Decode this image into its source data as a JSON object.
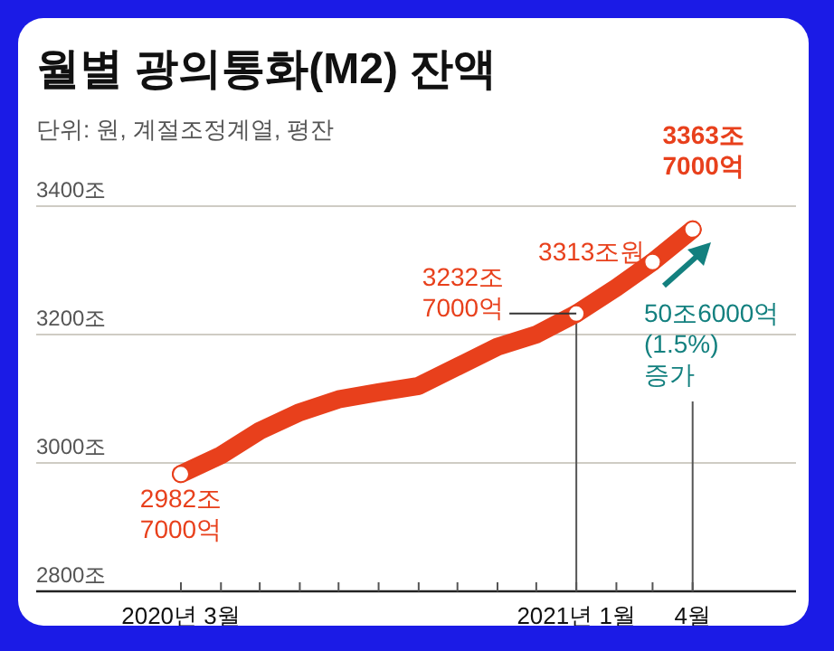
{
  "chart_data": {
    "type": "line",
    "title": "월별 광의통화(M2) 잔액",
    "subtitle": "단위: 원, 계절조정계열, 평잔",
    "x": [
      "2020-03",
      "2020-04",
      "2020-05",
      "2020-06",
      "2020-07",
      "2020-08",
      "2020-09",
      "2020-10",
      "2020-11",
      "2020-12",
      "2021-01",
      "2021-02",
      "2021-03",
      "2021-04"
    ],
    "series": [
      {
        "color": "#e8401c",
        "values": [
          2982.7,
          3012,
          3050,
          3079,
          3099,
          3110,
          3120,
          3150,
          3181,
          3200,
          3232.7,
          3273,
          3313,
          3363.7
        ]
      }
    ],
    "line_style": "solid",
    "grid": "y",
    "xlim": [
      "2019-11-10",
      "2021-06-20"
    ],
    "xticks": [
      {
        "value": "2020-03",
        "label": "2020년 3월"
      },
      {
        "value": "2020-04",
        "label": null
      },
      {
        "value": "2020-05",
        "label": null
      },
      {
        "value": "2020-06",
        "label": null
      },
      {
        "value": "2020-07",
        "label": null
      },
      {
        "value": "2020-08",
        "label": null
      },
      {
        "value": "2020-09",
        "label": null
      },
      {
        "value": "2020-10",
        "label": null
      },
      {
        "value": "2020-11",
        "label": null
      },
      {
        "value": "2020-12",
        "label": null
      },
      {
        "value": "2021-01",
        "label": "2021년 1월"
      },
      {
        "value": "2021-02",
        "label": null
      },
      {
        "value": "2021-03",
        "label": null
      },
      {
        "value": "2021-04",
        "label": "4월"
      }
    ],
    "ylim": [
      2800,
      3400
    ],
    "yticks": [
      {
        "value": 2800,
        "label": "2800조"
      },
      {
        "value": 3000,
        "label": "3000조"
      },
      {
        "value": 3200,
        "label": "3200조"
      },
      {
        "value": 3400,
        "label": "3400조"
      }
    ],
    "ref_lines": [
      {
        "axis": "x",
        "value": "2021-01",
        "label": null,
        "color": "#555555"
      },
      {
        "axis": "x",
        "value": "2021-04",
        "label": null,
        "color": "#555555"
      }
    ],
    "annotations": [
      {
        "text": "2982조\n7000억",
        "x": "2020-03",
        "y": 2982.7
      },
      {
        "text": "3232조\n7000억",
        "x": "2021-01",
        "y": 3232.7
      },
      {
        "text": "3313조원",
        "x": "2021-03",
        "y": 3313
      },
      {
        "text": "3363조\n7000억",
        "x": "2021-04",
        "y": 3363.7
      },
      "50조6000억\n(1.5%)\n증가"
    ]
  }
}
